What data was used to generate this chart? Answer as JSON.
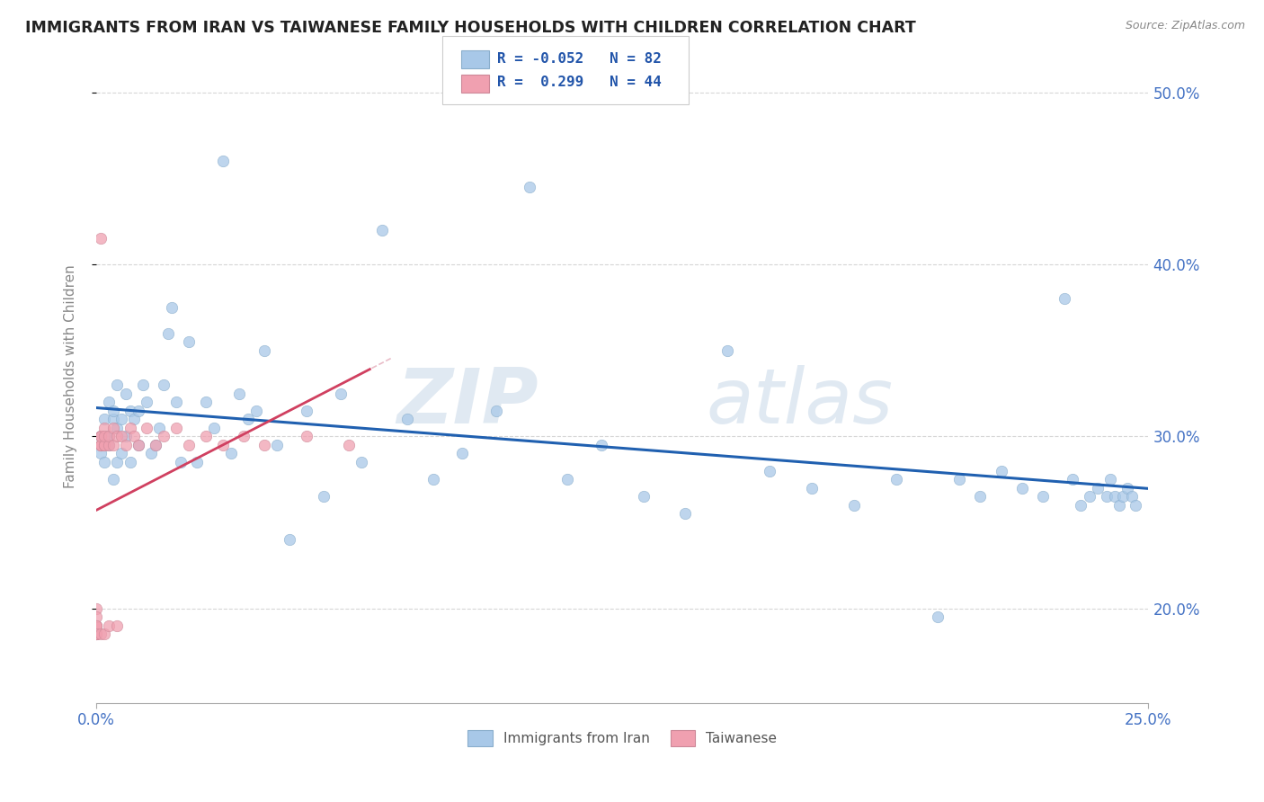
{
  "title": "IMMIGRANTS FROM IRAN VS TAIWANESE FAMILY HOUSEHOLDS WITH CHILDREN CORRELATION CHART",
  "source": "Source: ZipAtlas.com",
  "ylabel_label": "Family Households with Children",
  "legend_labels": [
    "Immigrants from Iran",
    "Taiwanese"
  ],
  "R_iran": -0.052,
  "N_iran": 82,
  "R_taiwan": 0.299,
  "N_taiwan": 44,
  "iran_color": "#a8c8e8",
  "taiwan_color": "#f0a0b0",
  "iran_line_color": "#2060b0",
  "taiwan_line_color": "#d04060",
  "xlim": [
    0.0,
    0.25
  ],
  "ylim": [
    0.145,
    0.525
  ],
  "yticks": [
    0.2,
    0.3,
    0.4,
    0.5
  ],
  "xticks": [
    0.0,
    0.25
  ],
  "iran_x": [
    0.001,
    0.001,
    0.002,
    0.002,
    0.003,
    0.003,
    0.003,
    0.004,
    0.004,
    0.004,
    0.005,
    0.005,
    0.005,
    0.006,
    0.006,
    0.007,
    0.007,
    0.008,
    0.008,
    0.009,
    0.01,
    0.01,
    0.011,
    0.012,
    0.013,
    0.014,
    0.015,
    0.016,
    0.017,
    0.018,
    0.019,
    0.02,
    0.022,
    0.024,
    0.026,
    0.028,
    0.03,
    0.032,
    0.034,
    0.036,
    0.038,
    0.04,
    0.043,
    0.046,
    0.05,
    0.054,
    0.058,
    0.063,
    0.068,
    0.074,
    0.08,
    0.087,
    0.095,
    0.103,
    0.112,
    0.12,
    0.13,
    0.14,
    0.15,
    0.16,
    0.17,
    0.18,
    0.19,
    0.2,
    0.205,
    0.21,
    0.215,
    0.22,
    0.225,
    0.23,
    0.232,
    0.234,
    0.236,
    0.238,
    0.24,
    0.241,
    0.242,
    0.243,
    0.244,
    0.245,
    0.246,
    0.247
  ],
  "iran_y": [
    0.3,
    0.29,
    0.31,
    0.285,
    0.295,
    0.32,
    0.3,
    0.31,
    0.275,
    0.315,
    0.285,
    0.305,
    0.33,
    0.31,
    0.29,
    0.325,
    0.3,
    0.315,
    0.285,
    0.31,
    0.295,
    0.315,
    0.33,
    0.32,
    0.29,
    0.295,
    0.305,
    0.33,
    0.36,
    0.375,
    0.32,
    0.285,
    0.355,
    0.285,
    0.32,
    0.305,
    0.46,
    0.29,
    0.325,
    0.31,
    0.315,
    0.35,
    0.295,
    0.24,
    0.315,
    0.265,
    0.325,
    0.285,
    0.42,
    0.31,
    0.275,
    0.29,
    0.315,
    0.445,
    0.275,
    0.295,
    0.265,
    0.255,
    0.35,
    0.28,
    0.27,
    0.26,
    0.275,
    0.195,
    0.275,
    0.265,
    0.28,
    0.27,
    0.265,
    0.38,
    0.275,
    0.26,
    0.265,
    0.27,
    0.265,
    0.275,
    0.265,
    0.26,
    0.265,
    0.27,
    0.265,
    0.26
  ],
  "taiwan_x": [
    0.0,
    0.0,
    0.0,
    0.0,
    0.0,
    0.0,
    0.0,
    0.0,
    0.0,
    0.001,
    0.001,
    0.001,
    0.001,
    0.001,
    0.001,
    0.001,
    0.002,
    0.002,
    0.002,
    0.002,
    0.002,
    0.003,
    0.003,
    0.003,
    0.004,
    0.004,
    0.005,
    0.005,
    0.006,
    0.007,
    0.008,
    0.009,
    0.01,
    0.012,
    0.014,
    0.016,
    0.019,
    0.022,
    0.026,
    0.03,
    0.035,
    0.04,
    0.05,
    0.06
  ],
  "taiwan_y": [
    0.185,
    0.19,
    0.185,
    0.19,
    0.2,
    0.185,
    0.195,
    0.19,
    0.185,
    0.295,
    0.3,
    0.295,
    0.185,
    0.415,
    0.295,
    0.3,
    0.295,
    0.305,
    0.295,
    0.3,
    0.185,
    0.295,
    0.3,
    0.19,
    0.305,
    0.295,
    0.3,
    0.19,
    0.3,
    0.295,
    0.305,
    0.3,
    0.295,
    0.305,
    0.295,
    0.3,
    0.305,
    0.295,
    0.3,
    0.295,
    0.3,
    0.295,
    0.3,
    0.295
  ]
}
